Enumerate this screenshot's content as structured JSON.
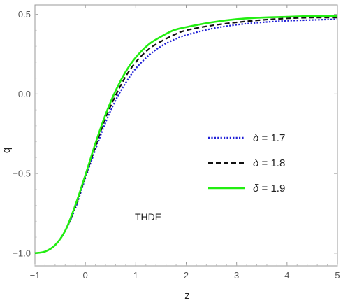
{
  "chart_data": {
    "type": "line",
    "title": "",
    "xlabel": "z",
    "ylabel": "q",
    "xlim": [
      -1,
      5
    ],
    "ylim": [
      -1.08,
      0.56
    ],
    "xticks": [
      -1,
      0,
      1,
      2,
      3,
      4,
      5
    ],
    "yticks": [
      -1.0,
      -0.5,
      0.0,
      0.5
    ],
    "xtick_labels": [
      "−1",
      "0",
      "1",
      "2",
      "3",
      "4",
      "5"
    ],
    "ytick_labels": [
      "−1.0",
      "−0.5",
      "0.0",
      "0.5"
    ],
    "grid": false,
    "legend_position": "right-middle",
    "annotation": "THDE",
    "series": [
      {
        "name": "δ = 1.7",
        "symbol": "δ",
        "label_rest": " = 1.7",
        "color": "#1f1fd6",
        "dash": "dotted",
        "x": [
          -1,
          -0.8,
          -0.6,
          -0.4,
          -0.2,
          0,
          0.2,
          0.4,
          0.6,
          0.8,
          1,
          1.25,
          1.5,
          1.75,
          2,
          2.5,
          3,
          3.5,
          4,
          4.5,
          5
        ],
        "y": [
          -1.0,
          -0.99,
          -0.95,
          -0.86,
          -0.72,
          -0.53,
          -0.35,
          -0.18,
          -0.04,
          0.07,
          0.16,
          0.24,
          0.3,
          0.34,
          0.37,
          0.41,
          0.435,
          0.45,
          0.46,
          0.465,
          0.47
        ]
      },
      {
        "name": "δ = 1.8",
        "symbol": "δ",
        "label_rest": " = 1.8",
        "color": "#111111",
        "dash": "dashed",
        "x": [
          -1,
          -0.8,
          -0.6,
          -0.4,
          -0.2,
          0,
          0.2,
          0.4,
          0.6,
          0.8,
          1,
          1.25,
          1.5,
          1.75,
          2,
          2.5,
          3,
          3.5,
          4,
          4.5,
          5
        ],
        "y": [
          -1.0,
          -0.99,
          -0.95,
          -0.86,
          -0.71,
          -0.52,
          -0.33,
          -0.15,
          -0.01,
          0.11,
          0.2,
          0.28,
          0.33,
          0.37,
          0.4,
          0.43,
          0.45,
          0.465,
          0.475,
          0.48,
          0.48
        ]
      },
      {
        "name": "δ = 1.9",
        "symbol": "δ",
        "label_rest": " = 1.9",
        "color": "#22ee11",
        "dash": "solid",
        "x": [
          -1,
          -0.8,
          -0.6,
          -0.4,
          -0.2,
          0,
          0.2,
          0.4,
          0.6,
          0.8,
          1,
          1.25,
          1.5,
          1.75,
          2,
          2.5,
          3,
          3.5,
          4,
          4.5,
          5
        ],
        "y": [
          -1.0,
          -0.99,
          -0.95,
          -0.86,
          -0.7,
          -0.51,
          -0.31,
          -0.13,
          0.02,
          0.14,
          0.23,
          0.31,
          0.36,
          0.4,
          0.42,
          0.45,
          0.47,
          0.48,
          0.485,
          0.49,
          0.49
        ]
      }
    ]
  }
}
